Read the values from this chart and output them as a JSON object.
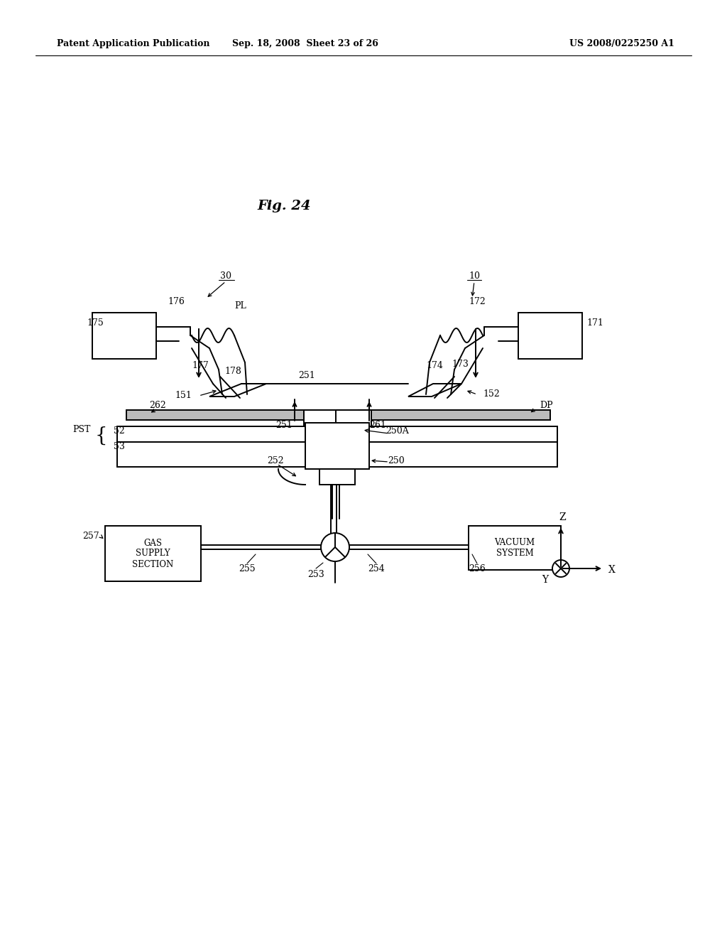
{
  "background_color": "#ffffff",
  "header_left": "Patent Application Publication",
  "header_center": "Sep. 18, 2008  Sheet 23 of 26",
  "header_right": "US 2008/0225250 A1",
  "fig_title": "Fig. 24"
}
